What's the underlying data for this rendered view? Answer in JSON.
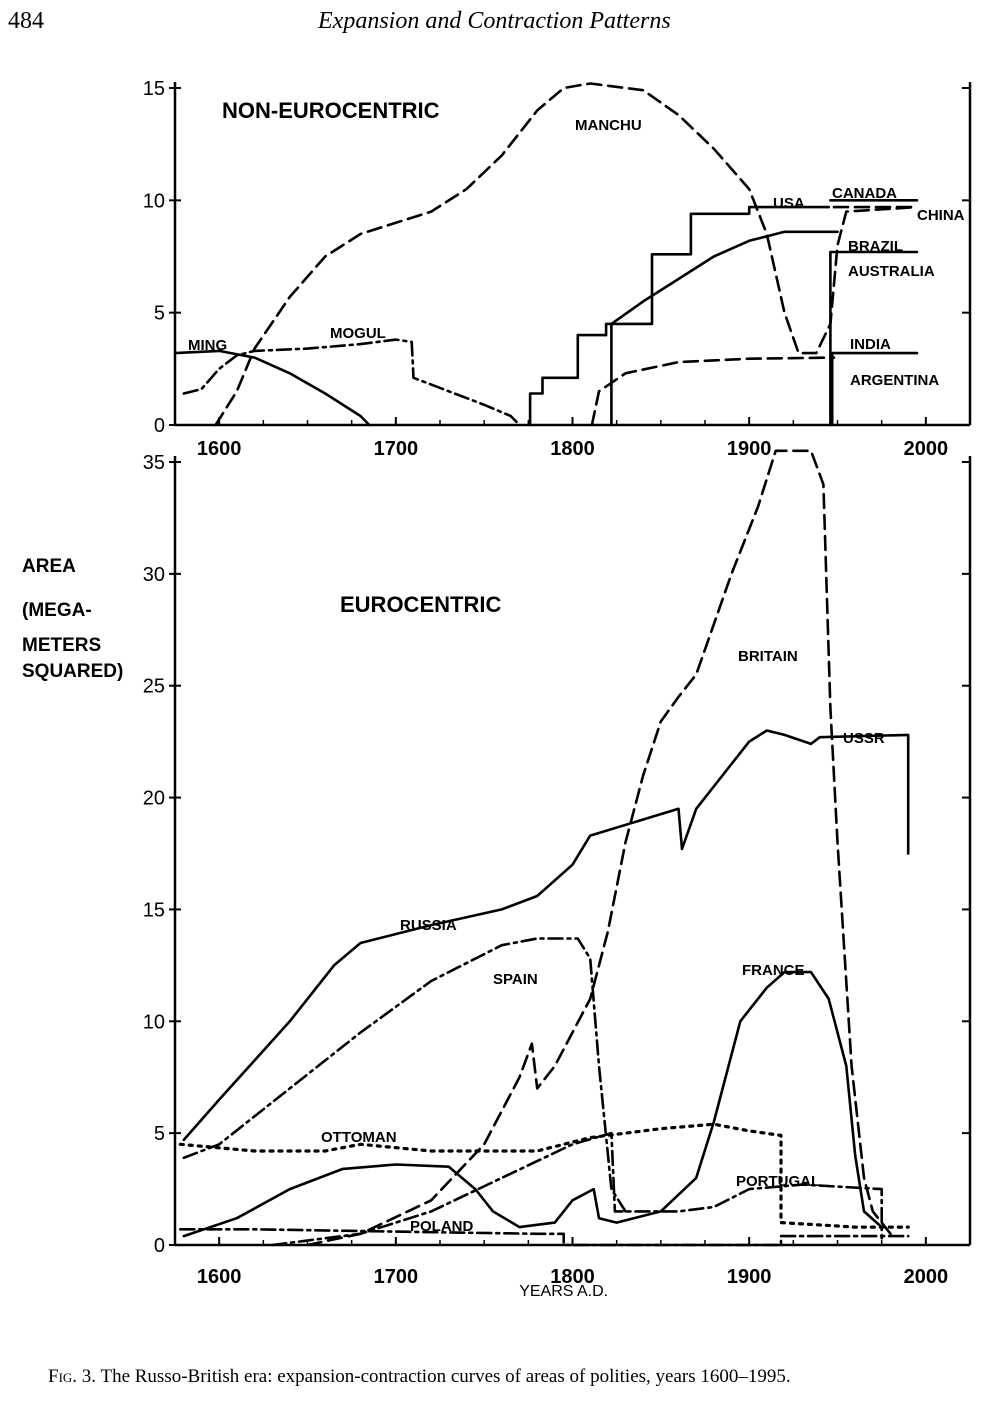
{
  "page": {
    "number": "484",
    "running_title": "Expansion and Contraction Patterns",
    "caption_fig": "Fig. 3.",
    "caption_text": "The Russo-British era: expansion-contraction curves of areas of polities, years 1600–1995."
  },
  "chart_data": [
    {
      "type": "line",
      "title": "NON-EUROCENTRIC",
      "xlabel": "",
      "ylabel": "",
      "xlim": [
        1575,
        2025
      ],
      "ylim": [
        0,
        15
      ],
      "x_ticks": [
        1600,
        1700,
        1800,
        1900,
        2000
      ],
      "y_ticks": [
        0,
        5,
        10,
        15
      ],
      "series": [
        {
          "name": "MING",
          "style": "solid",
          "points": [
            [
              1575,
              3.2
            ],
            [
              1600,
              3.3
            ],
            [
              1620,
              3.0
            ],
            [
              1640,
              2.3
            ],
            [
              1660,
              1.4
            ],
            [
              1680,
              0.4
            ],
            [
              1685,
              0
            ]
          ]
        },
        {
          "name": "MANCHU",
          "style": "dashed",
          "points": [
            [
              1598,
              0
            ],
            [
              1610,
              1.5
            ],
            [
              1620,
              3.4
            ],
            [
              1640,
              5.7
            ],
            [
              1660,
              7.5
            ],
            [
              1680,
              8.5
            ],
            [
              1700,
              9.0
            ],
            [
              1720,
              9.5
            ],
            [
              1740,
              10.5
            ],
            [
              1760,
              12.0
            ],
            [
              1780,
              14.0
            ],
            [
              1795,
              15.0
            ],
            [
              1810,
              15.2
            ],
            [
              1840,
              14.9
            ],
            [
              1860,
              13.8
            ],
            [
              1880,
              12.3
            ],
            [
              1900,
              10.5
            ],
            [
              1910,
              8.5
            ],
            [
              1920,
              5.0
            ],
            [
              1928,
              3.2
            ],
            [
              1938,
              3.2
            ],
            [
              1946,
              4.5
            ],
            [
              1950,
              8.0
            ],
            [
              1955,
              9.5
            ],
            [
              1995,
              9.7
            ]
          ]
        },
        {
          "name": "MOGUL",
          "style": "dashdot",
          "points": [
            [
              1580,
              1.4
            ],
            [
              1590,
              1.6
            ],
            [
              1600,
              2.5
            ],
            [
              1610,
              3.1
            ],
            [
              1620,
              3.3
            ],
            [
              1650,
              3.4
            ],
            [
              1680,
              3.6
            ],
            [
              1700,
              3.8
            ],
            [
              1709,
              3.7
            ],
            [
              1710,
              2.1
            ],
            [
              1730,
              1.5
            ],
            [
              1750,
              0.9
            ],
            [
              1765,
              0.4
            ],
            [
              1770,
              0
            ]
          ]
        },
        {
          "name": "USA",
          "style": "solid",
          "points": [
            [
              1776,
              0
            ],
            [
              1776,
              1.4
            ],
            [
              1783,
              1.4
            ],
            [
              1783,
              2.1
            ],
            [
              1803,
              2.1
            ],
            [
              1803,
              4.0
            ],
            [
              1819,
              4.0
            ],
            [
              1819,
              4.5
            ],
            [
              1845,
              4.5
            ],
            [
              1845,
              7.6
            ],
            [
              1848,
              7.6
            ],
            [
              1848,
              7.6
            ],
            [
              1867,
              7.6
            ],
            [
              1867,
              9.4
            ],
            [
              1900,
              9.4
            ],
            [
              1900,
              9.7
            ],
            [
              1945,
              9.7
            ],
            [
              1945,
              9.7
            ]
          ]
        },
        {
          "name": "CANADA",
          "style": "solid",
          "points": [
            [
              1946,
              10.0
            ],
            [
              1995,
              10.0
            ]
          ]
        },
        {
          "name": "CHINA",
          "style": "dashed",
          "points": [
            [
              1948,
              9.7
            ],
            [
              1995,
              9.7
            ]
          ]
        },
        {
          "name": "BRAZIL",
          "style": "solid",
          "points": [
            [
              1822,
              0
            ],
            [
              1822,
              4.5
            ],
            [
              1840,
              5.5
            ],
            [
              1860,
              6.5
            ],
            [
              1880,
              7.5
            ],
            [
              1900,
              8.2
            ],
            [
              1920,
              8.6
            ],
            [
              1950,
              8.6
            ]
          ]
        },
        {
          "name": "AUSTRALIA",
          "style": "solid",
          "points": [
            [
              1946,
              0
            ],
            [
              1946,
              7.7
            ],
            [
              1995,
              7.7
            ]
          ]
        },
        {
          "name": "INDIA",
          "style": "solid",
          "points": [
            [
              1947,
              0
            ],
            [
              1947,
              3.2
            ],
            [
              1995,
              3.2
            ]
          ]
        },
        {
          "name": "ARGENTINA",
          "style": "dashed",
          "points": [
            [
              1811,
              0
            ],
            [
              1815,
              1.5
            ],
            [
              1830,
              2.3
            ],
            [
              1860,
              2.8
            ],
            [
              1900,
              2.95
            ],
            [
              1948,
              3.0
            ]
          ]
        }
      ]
    },
    {
      "type": "line",
      "title": "EUROCENTRIC",
      "xlabel": "YEARS A.D.",
      "ylabel": "AREA (MEGA-METERS SQUARED)",
      "ylabel_lines": [
        "AREA",
        "(MEGA-",
        "METERS",
        "SQUARED)"
      ],
      "xlim": [
        1575,
        2025
      ],
      "ylim": [
        0,
        35
      ],
      "x_ticks": [
        1600,
        1700,
        1800,
        1900,
        2000
      ],
      "y_ticks": [
        0,
        5,
        10,
        15,
        20,
        25,
        30,
        35
      ],
      "series": [
        {
          "name": "RUSSIA",
          "style": "solid",
          "points": [
            [
              1580,
              4.7
            ],
            [
              1600,
              6.5
            ],
            [
              1640,
              10.0
            ],
            [
              1665,
              12.5
            ],
            [
              1680,
              13.5
            ],
            [
              1720,
              14.3
            ],
            [
              1760,
              15.0
            ],
            [
              1780,
              15.6
            ],
            [
              1800,
              17.0
            ],
            [
              1810,
              18.3
            ],
            [
              1860,
              19.5
            ],
            [
              1862,
              17.7
            ],
            [
              1870,
              19.5
            ],
            [
              1890,
              21.5
            ],
            [
              1900,
              22.5
            ],
            [
              1910,
              23.0
            ],
            [
              1920,
              22.8
            ],
            [
              1935,
              22.4
            ],
            [
              1940,
              22.7
            ],
            [
              1990,
              22.8
            ],
            [
              1990,
              17.5
            ]
          ]
        },
        {
          "name": "SPAIN",
          "style": "dashdot",
          "points": [
            [
              1580,
              3.9
            ],
            [
              1600,
              4.5
            ],
            [
              1640,
              7.0
            ],
            [
              1680,
              9.5
            ],
            [
              1720,
              11.8
            ],
            [
              1760,
              13.4
            ],
            [
              1780,
              13.7
            ],
            [
              1803,
              13.7
            ],
            [
              1810,
              12.8
            ],
            [
              1815,
              8.0
            ],
            [
              1822,
              2.5
            ],
            [
              1830,
              1.5
            ]
          ]
        },
        {
          "name": "BRITAIN",
          "style": "dashed",
          "points": [
            [
              1650,
              0
            ],
            [
              1680,
              0.5
            ],
            [
              1720,
              2.0
            ],
            [
              1750,
              4.5
            ],
            [
              1770,
              7.5
            ],
            [
              1777,
              9.0
            ],
            [
              1780,
              7.0
            ],
            [
              1790,
              8.0
            ],
            [
              1810,
              11.0
            ],
            [
              1820,
              14.0
            ],
            [
              1830,
              18.0
            ],
            [
              1840,
              21.0
            ],
            [
              1850,
              23.4
            ],
            [
              1860,
              24.5
            ],
            [
              1870,
              25.5
            ],
            [
              1890,
              30.0
            ],
            [
              1905,
              33.0
            ],
            [
              1915,
              35.5
            ],
            [
              1935,
              35.5
            ],
            [
              1942,
              34.0
            ],
            [
              1946,
              24.0
            ],
            [
              1950,
              18.0
            ],
            [
              1958,
              8.0
            ],
            [
              1965,
              3.0
            ],
            [
              1970,
              1.5
            ],
            [
              1980,
              0.5
            ]
          ]
        },
        {
          "name": "FRANCE",
          "style": "solid",
          "points": [
            [
              1580,
              0.4
            ],
            [
              1610,
              1.2
            ],
            [
              1640,
              2.5
            ],
            [
              1670,
              3.4
            ],
            [
              1700,
              3.6
            ],
            [
              1730,
              3.5
            ],
            [
              1745,
              2.5
            ],
            [
              1755,
              1.5
            ],
            [
              1770,
              0.8
            ],
            [
              1790,
              1.0
            ],
            [
              1800,
              2.0
            ],
            [
              1812,
              2.5
            ],
            [
              1815,
              1.2
            ],
            [
              1825,
              1.0
            ],
            [
              1850,
              1.5
            ],
            [
              1870,
              3.0
            ],
            [
              1880,
              5.5
            ],
            [
              1895,
              10.0
            ],
            [
              1910,
              11.5
            ],
            [
              1920,
              12.2
            ],
            [
              1935,
              12.2
            ],
            [
              1945,
              11.0
            ],
            [
              1955,
              8.0
            ],
            [
              1960,
              4.0
            ],
            [
              1965,
              1.5
            ],
            [
              1975,
              0.8
            ]
          ]
        },
        {
          "name": "OTTOMAN",
          "style": "dotted",
          "points": [
            [
              1578,
              4.5
            ],
            [
              1620,
              4.2
            ],
            [
              1660,
              4.2
            ],
            [
              1680,
              4.5
            ],
            [
              1720,
              4.2
            ],
            [
              1780,
              4.2
            ],
            [
              1810,
              4.8
            ],
            [
              1850,
              5.2
            ],
            [
              1880,
              5.4
            ],
            [
              1900,
              5.1
            ],
            [
              1918,
              4.9
            ],
            [
              1918,
              1.0
            ],
            [
              1960,
              0.8
            ],
            [
              1990,
              0.8
            ]
          ]
        },
        {
          "name": "POLAND",
          "style": "dashdot",
          "points": [
            [
              1578,
              0.7
            ],
            [
              1620,
              0.7
            ],
            [
              1700,
              0.6
            ],
            [
              1780,
              0.5
            ],
            [
              1795,
              0.5
            ],
            [
              1795,
              0
            ],
            [
              1918,
              0
            ],
            [
              1918,
              0.4
            ],
            [
              1990,
              0.4
            ]
          ]
        },
        {
          "name": "PORTUGAL",
          "style": "dashdot",
          "points": [
            [
              1630,
              0
            ],
            [
              1680,
              0.5
            ],
            [
              1720,
              1.5
            ],
            [
              1760,
              3.0
            ],
            [
              1800,
              4.5
            ],
            [
              1822,
              5.0
            ],
            [
              1824,
              1.5
            ],
            [
              1860,
              1.5
            ],
            [
              1880,
              1.7
            ],
            [
              1900,
              2.5
            ],
            [
              1930,
              2.7
            ],
            [
              1975,
              2.5
            ],
            [
              1975,
              0.3
            ]
          ]
        }
      ]
    }
  ]
}
